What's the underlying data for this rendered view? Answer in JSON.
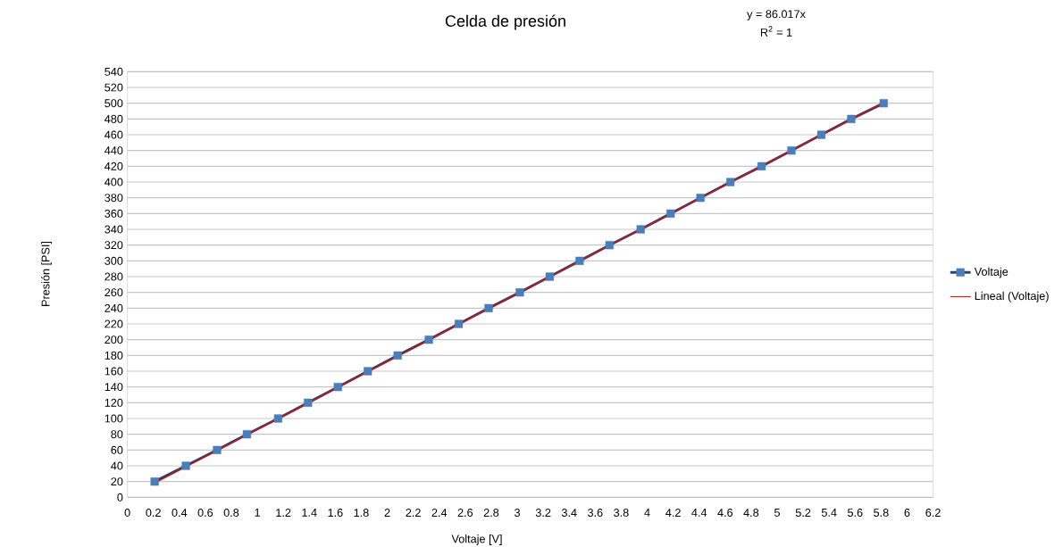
{
  "chart_data": {
    "type": "line",
    "title": "Celda de presión",
    "xlabel": "Voltaje [V]",
    "ylabel": "Presión [PSI]",
    "annotations": [
      "y = 86.017x",
      "R$^{2}$ = 1"
    ],
    "series": [
      {
        "name": "Voltaje",
        "color": "#4a7ebb",
        "marker": "square",
        "x": [
          0.21,
          0.45,
          0.69,
          0.92,
          1.16,
          1.39,
          1.62,
          1.85,
          2.08,
          2.32,
          2.55,
          2.78,
          3.02,
          3.25,
          3.48,
          3.71,
          3.95,
          4.18,
          4.41,
          4.64,
          4.88,
          5.11,
          5.34,
          5.57,
          5.82
        ],
        "values": [
          20,
          40,
          60,
          80,
          100,
          120,
          140,
          160,
          180,
          200,
          220,
          240,
          260,
          280,
          300,
          320,
          340,
          360,
          380,
          400,
          420,
          440,
          460,
          480,
          500
        ]
      },
      {
        "name": "Lineal (Voltaje)",
        "color": "#ff0000",
        "marker": "none",
        "x": [
          0.21,
          5.82
        ],
        "values": [
          18,
          501
        ]
      }
    ],
    "xlim": [
      0,
      6.2
    ],
    "xticks": [
      0,
      0.2,
      0.4,
      0.6,
      0.8,
      1,
      1.2,
      1.4,
      1.6,
      1.8,
      2,
      2.2,
      2.4,
      2.6,
      2.8,
      3,
      3.2,
      3.4,
      3.6,
      3.8,
      4,
      4.2,
      4.4,
      4.6,
      4.8,
      5,
      5.2,
      5.4,
      5.6,
      5.8,
      6,
      6.2
    ],
    "ylim": [
      0,
      540
    ],
    "yticks": [
      0,
      20,
      40,
      60,
      80,
      100,
      120,
      140,
      160,
      180,
      200,
      220,
      240,
      260,
      280,
      300,
      320,
      340,
      360,
      380,
      400,
      420,
      440,
      460,
      480,
      500,
      520,
      540
    ],
    "grid": "y",
    "legend": "right"
  }
}
